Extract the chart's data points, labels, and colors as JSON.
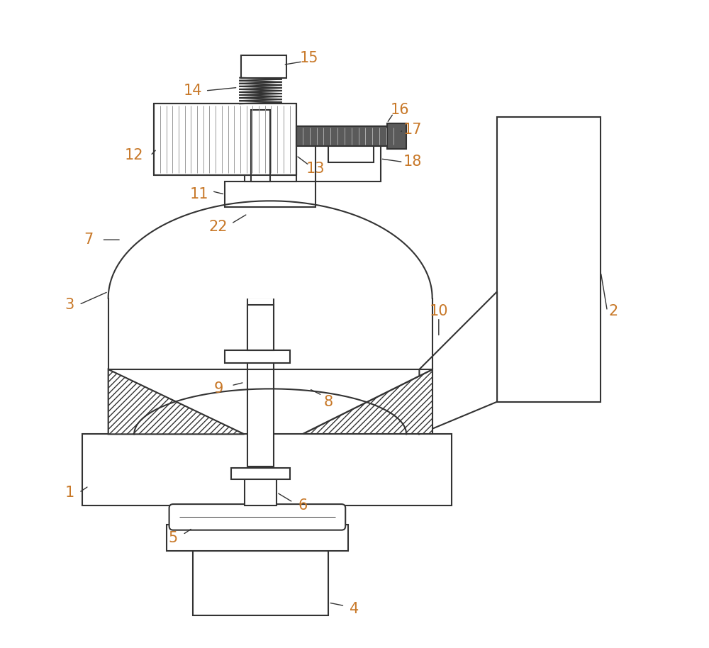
{
  "bg": "#ffffff",
  "lc": "#333333",
  "label_color": "#c87828",
  "lw": 1.5,
  "lw_thin": 0.7,
  "label_fs": 15,
  "figsize": [
    10.0,
    9.14
  ],
  "dpi": 100
}
